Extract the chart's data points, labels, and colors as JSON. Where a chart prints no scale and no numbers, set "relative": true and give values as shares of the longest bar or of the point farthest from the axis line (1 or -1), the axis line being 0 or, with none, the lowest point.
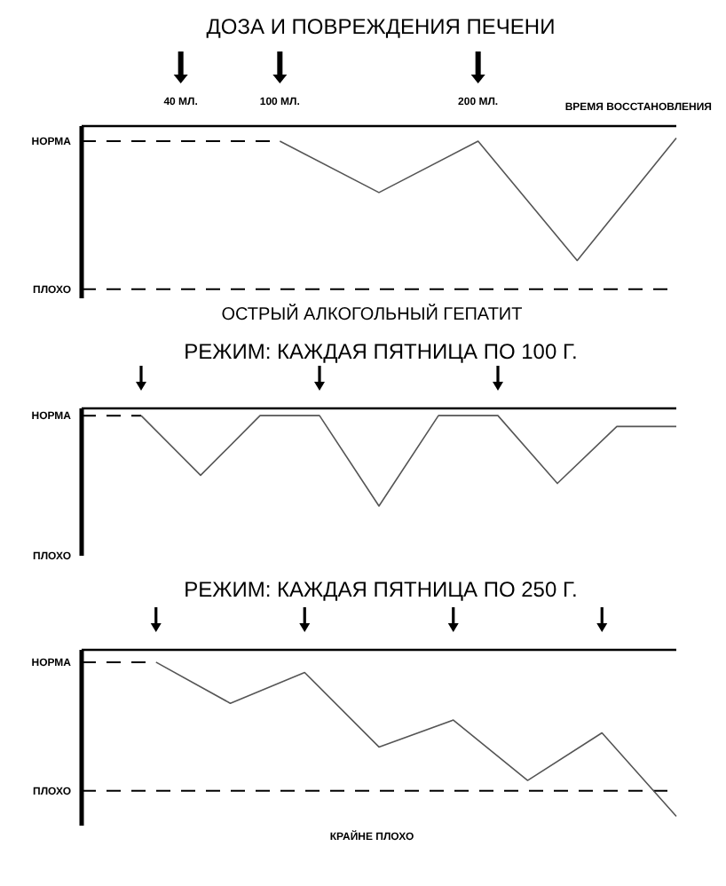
{
  "chart_data": [
    {
      "type": "line",
      "title": "ДОЗА И  ПОВРЕЖДЕНИЯ ПЕЧЕНИ",
      "xlabel": "ВРЕМЯ ВОССТАНОВЛЕНИЯ",
      "categories": [
        null,
        null,
        null,
        null,
        null,
        null,
        null
      ],
      "relative": true,
      "tick_labels": false,
      "marker": "none",
      "series": [
        {
          "color": "#000000",
          "line_style": "dashed",
          "values": [
            0.98,
            0.98,
            0.98,
            null,
            null,
            null,
            null
          ]
        },
        {
          "color": "#555555",
          "line_style": "solid",
          "values": [
            null,
            null,
            0.98,
            0.64,
            0.98,
            0.19,
            1
          ]
        }
      ],
      "ref_lines": [
        {
          "axis": "y",
          "value": 0,
          "label": null,
          "line_style": "dashed",
          "color": "#000000"
        }
      ],
      "annotations": [
        "НОРМА",
        "ПЛОХО",
        "40 МЛ.",
        "100 МЛ.",
        "200 МЛ.",
        "ОСТРЫЙ АЛКОГОЛЬНЫЙ ГЕПАТИТ"
      ]
    },
    {
      "type": "line",
      "title": "РЕЖИМ: КАЖДАЯ ПЯТНИЦА ПО 100 Г.",
      "categories": [
        null,
        null,
        null,
        null,
        null,
        null,
        null,
        null,
        null,
        null,
        null
      ],
      "relative": true,
      "tick_labels": false,
      "marker": "none",
      "series": [
        {
          "color": "#000000",
          "line_style": "dashed",
          "values": [
            1,
            1,
            null,
            null,
            null,
            null,
            null,
            null,
            null,
            null,
            null
          ]
        },
        {
          "color": "#555555",
          "line_style": "solid",
          "values": [
            null,
            1,
            0.34,
            1,
            1,
            0,
            1,
            1,
            0.25,
            0.88,
            0.88
          ]
        }
      ],
      "annotations": [
        "НОРМА",
        "ПЛОХО"
      ]
    },
    {
      "type": "line",
      "title": "РЕЖИМ: КАЖДАЯ ПЯТНИЦА ПО 250 Г.",
      "categories": [
        null,
        null,
        null,
        null,
        null,
        null,
        null,
        null,
        null
      ],
      "relative": true,
      "tick_labels": false,
      "marker": "none",
      "series": [
        {
          "color": "#000000",
          "line_style": "dashed",
          "values": [
            1,
            1,
            null,
            null,
            null,
            null,
            null,
            null,
            null
          ]
        },
        {
          "color": "#555555",
          "line_style": "solid",
          "values": [
            null,
            1,
            0.68,
            0.92,
            0.34,
            0.55,
            0.08,
            0.45,
            -0.2
          ]
        }
      ],
      "ref_lines": [
        {
          "axis": "y",
          "value": 0,
          "label": null,
          "line_style": "dashed",
          "color": "#000000"
        }
      ],
      "annotations": [
        "НОРМА",
        "ПЛОХО",
        "КРАЙНЕ ПЛОХО"
      ]
    }
  ]
}
